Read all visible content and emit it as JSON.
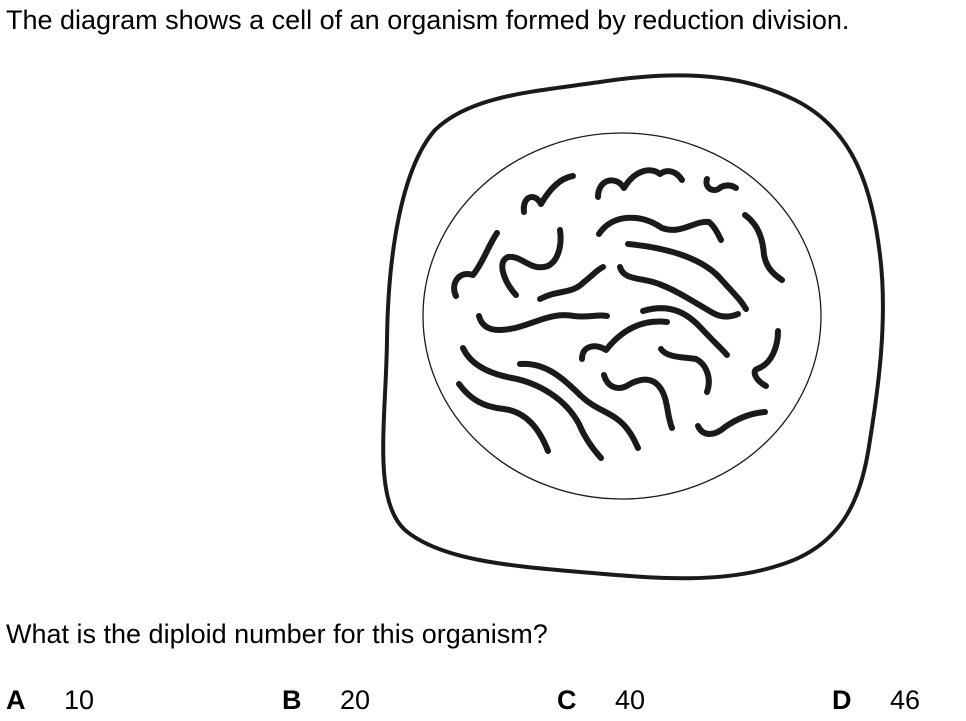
{
  "question": {
    "intro": "The diagram shows a cell of an organism formed by reduction division.",
    "prompt": "What is the diploid number for this organism?"
  },
  "options": [
    {
      "letter": "A",
      "value": "10"
    },
    {
      "letter": "B",
      "value": "20"
    },
    {
      "letter": "C",
      "value": "40"
    },
    {
      "letter": "D",
      "value": "46"
    }
  ],
  "diagram": {
    "stroke_color": "#1a1a1a",
    "chromosome_count": 20
  }
}
